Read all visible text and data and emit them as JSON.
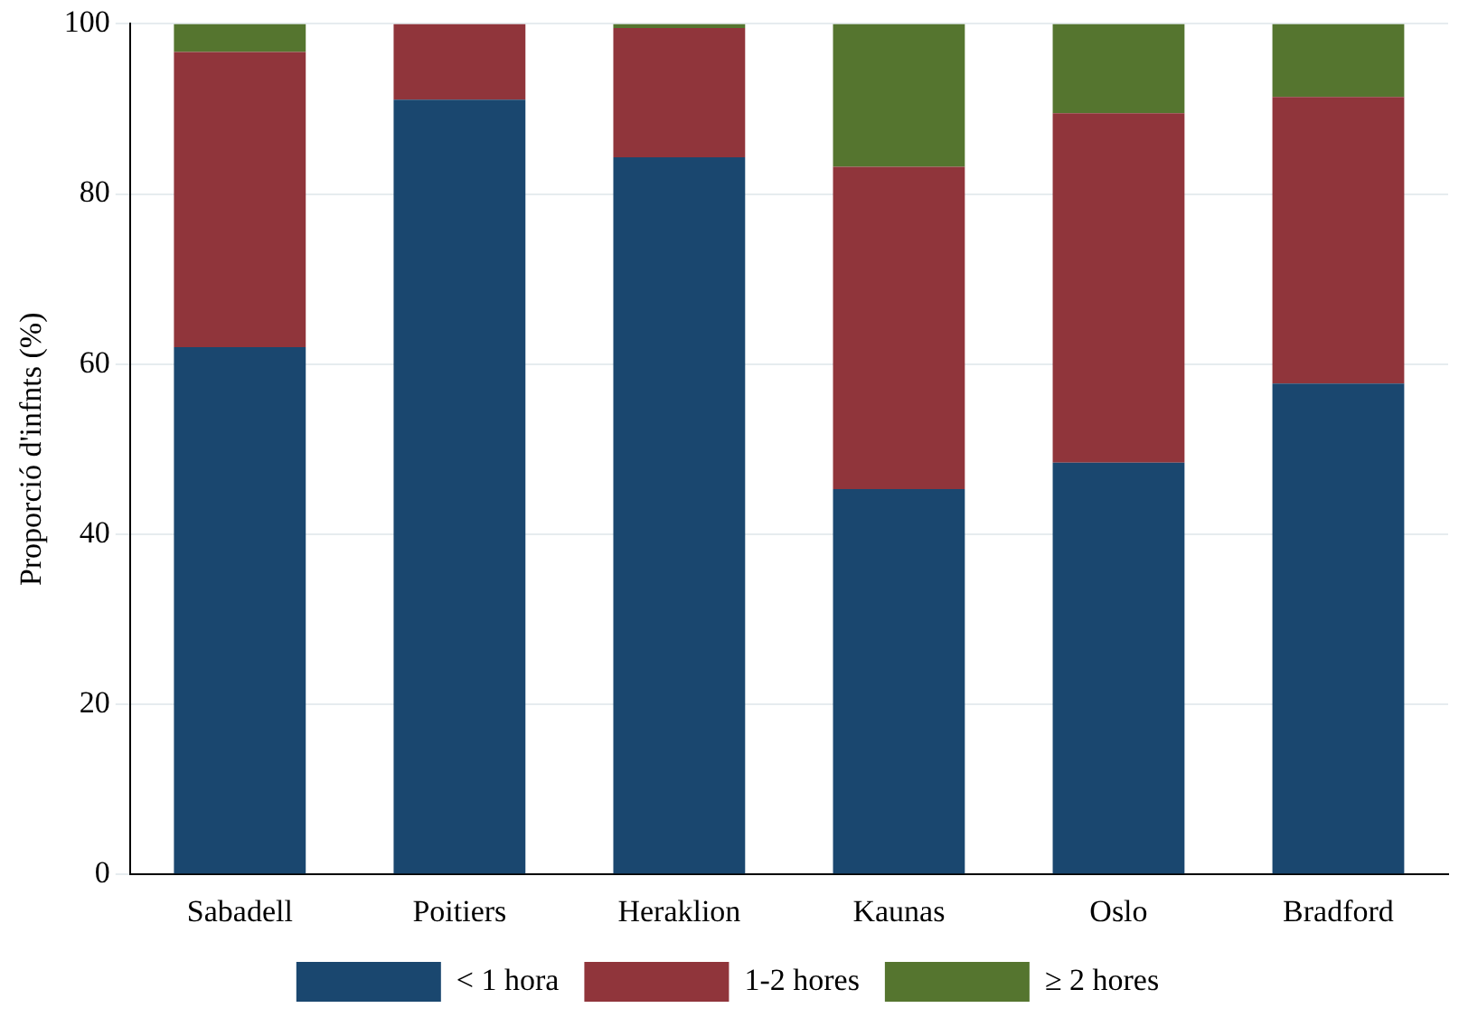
{
  "chart_data": {
    "type": "bar",
    "stacked": true,
    "ylabel": "Proporció d'infnts (%)",
    "categories": [
      "Sabadell",
      "Poitiers",
      "Heraklion",
      "Kaunas",
      "Oslo",
      "Bradford"
    ],
    "series": [
      {
        "name": "< 1 hora",
        "color": "#1a476f",
        "values": [
          62,
          91.1,
          84.3,
          45.3,
          48.4,
          57.7
        ]
      },
      {
        "name": "1-2 hores",
        "color": "#90353b",
        "values": [
          34.7,
          8.9,
          15.2,
          37.9,
          41.1,
          33.7
        ]
      },
      {
        "name": "≥ 2 hores",
        "color": "#55752f",
        "values": [
          3.3,
          0,
          0.5,
          16.8,
          10.5,
          8.6
        ]
      }
    ],
    "ylim": [
      0,
      100
    ],
    "yticks": [
      0,
      20,
      40,
      60,
      80,
      100
    ],
    "grid": "y",
    "legend": "bottom"
  }
}
